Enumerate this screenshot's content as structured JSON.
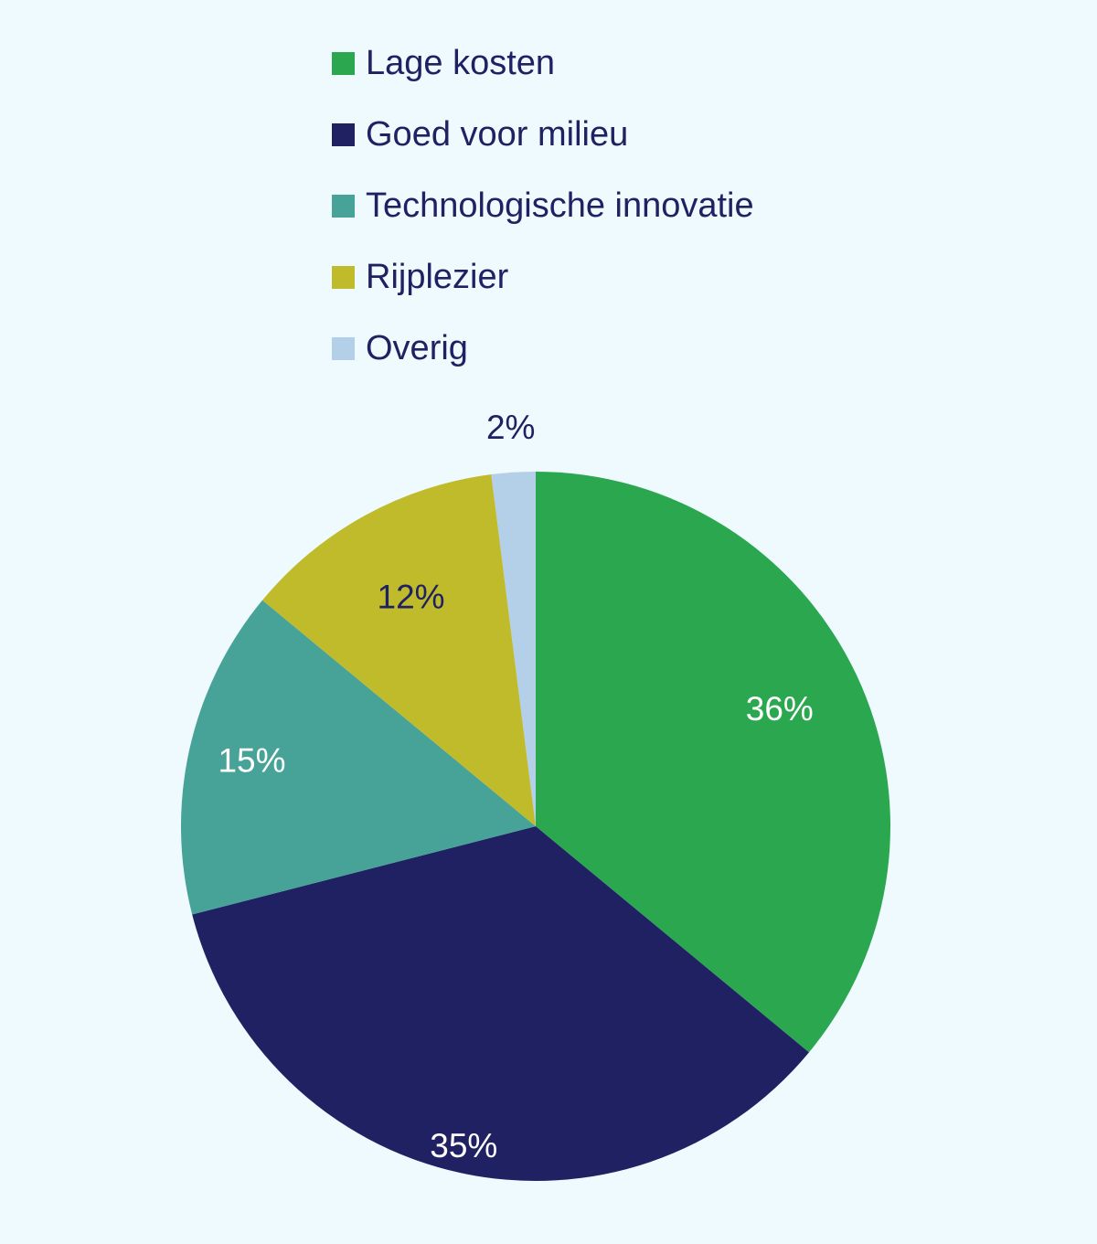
{
  "chart_data": {
    "type": "pie",
    "title": "",
    "legend_position": "top",
    "label_color": "#1f2163",
    "slices": [
      {
        "label": "Lage kosten",
        "value": 36,
        "value_label": "36%",
        "color": "#2ba84f",
        "text_color": "#ffffff"
      },
      {
        "label": "Goed voor milieu",
        "value": 35,
        "value_label": "35%",
        "color": "#1f2163",
        "text_color": "#ffffff"
      },
      {
        "label": "Technologische innovatie",
        "value": 15,
        "value_label": "15%",
        "color": "#47a398",
        "text_color": "#ffffff"
      },
      {
        "label": "Rijplezier",
        "value": 12,
        "value_label": "12%",
        "color": "#c0bb2b",
        "text_color": "#1f2163"
      },
      {
        "label": "Overig",
        "value": 2,
        "value_label": "2%",
        "color": "#b3d0e8",
        "text_color": "#1f2163"
      }
    ]
  }
}
